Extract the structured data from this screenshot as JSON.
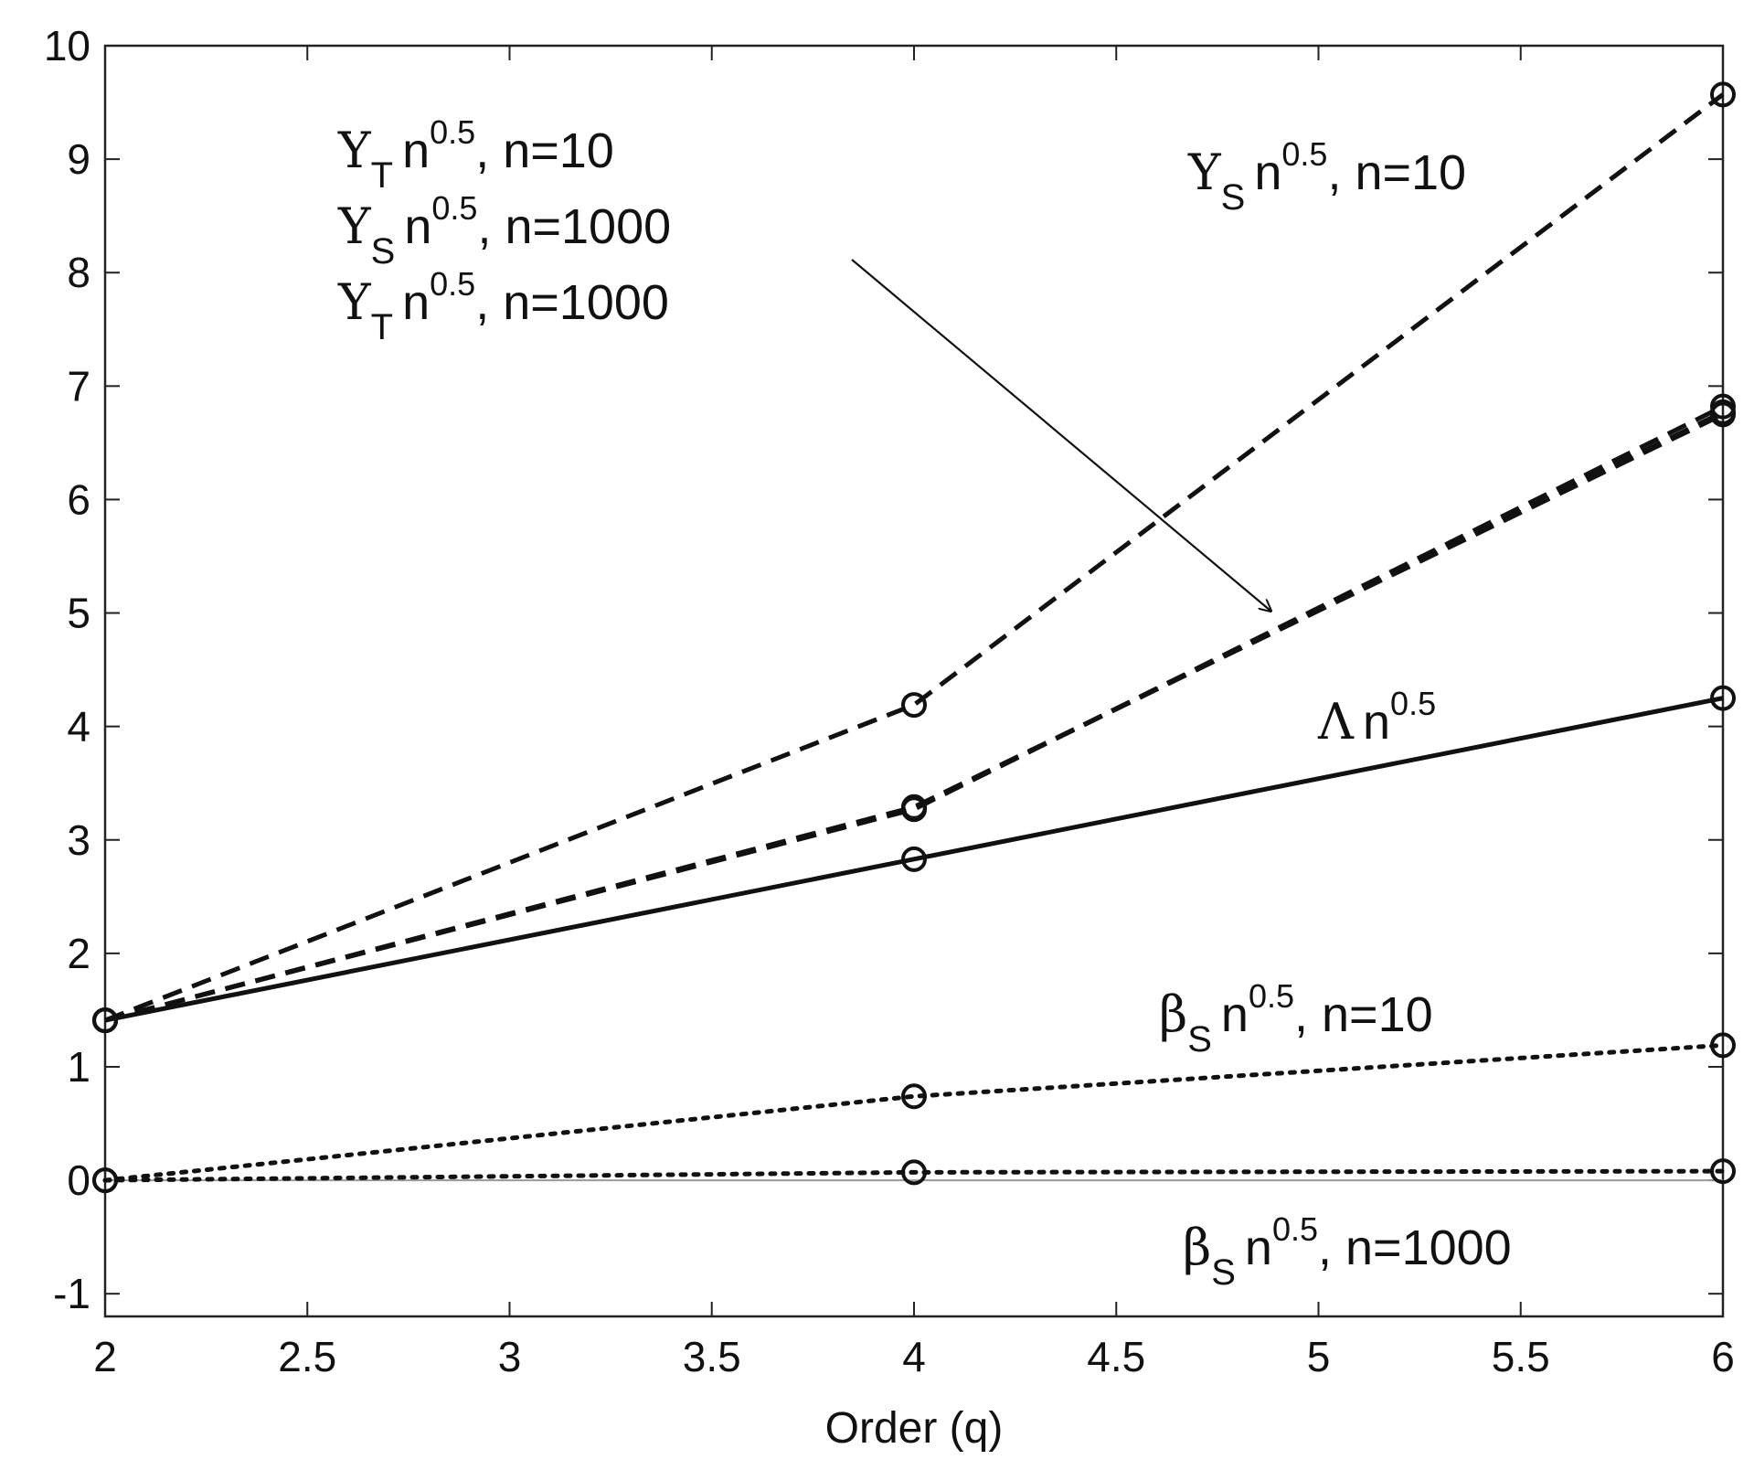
{
  "chart_data": {
    "type": "line",
    "title": "",
    "xlabel": "Order (q)",
    "ylabel": "",
    "xlim": [
      2,
      6
    ],
    "ylim": [
      -1.2,
      10
    ],
    "x_ticks": [
      "2",
      "2.5",
      "3",
      "3.5",
      "4",
      "4.5",
      "5",
      "5.5",
      "6"
    ],
    "y_ticks": [
      "-1",
      "0",
      "1",
      "2",
      "3",
      "4",
      "5",
      "6",
      "7",
      "8",
      "9",
      "10"
    ],
    "x": [
      2,
      4,
      6
    ],
    "grid": false,
    "legend": "none",
    "series": [
      {
        "label": "Υ_S n^0.5, n=10",
        "values": [
          1.41,
          4.19,
          9.57
        ],
        "style": "dashed"
      },
      {
        "label": "Υ_T n^0.5, n=10",
        "values": [
          1.41,
          3.27,
          6.82
        ],
        "style": "dashed"
      },
      {
        "label": "Υ_S n^0.5, n=1000",
        "values": [
          1.41,
          3.28,
          6.77
        ],
        "style": "dashed"
      },
      {
        "label": "Υ_T n^0.5, n=1000",
        "values": [
          1.41,
          3.29,
          6.75
        ],
        "style": "dashed"
      },
      {
        "label": "Λ n^0.5",
        "values": [
          1.41,
          2.83,
          4.25
        ],
        "style": "solid"
      },
      {
        "label": "β_S n^0.5, n=10",
        "values": [
          0,
          0.74,
          1.19
        ],
        "style": "dotted"
      },
      {
        "label": "β_S n^0.5, n=1000",
        "values": [
          0,
          0.07,
          0.08
        ],
        "style": "dotted"
      }
    ],
    "annotations": {
      "group_upper_left": [
        {
          "sym": "Υ",
          "sub": "T",
          "sup": "0.5",
          "rest": ", n=10"
        },
        {
          "sym": "Υ",
          "sub": "S",
          "sup": "0.5",
          "rest": ", n=1000"
        },
        {
          "sym": "Υ",
          "sub": "T",
          "sup": "0.5",
          "rest": ", n=1000"
        }
      ],
      "ys_n10": {
        "sym": "Υ",
        "sub": "S",
        "sup": "0.5",
        "rest": ", n=10"
      },
      "lambda": {
        "sym": "Λ",
        "sub": "",
        "sup": "0.5",
        "rest": ""
      },
      "bs_n10": {
        "sym": "β",
        "sub": "S",
        "sup": "0.5",
        "rest": ", n=10"
      },
      "bs_n1000": {
        "sym": "β",
        "sub": "S",
        "sup": "0.5",
        "rest": ", n=1000"
      },
      "n_letter": "n"
    }
  }
}
